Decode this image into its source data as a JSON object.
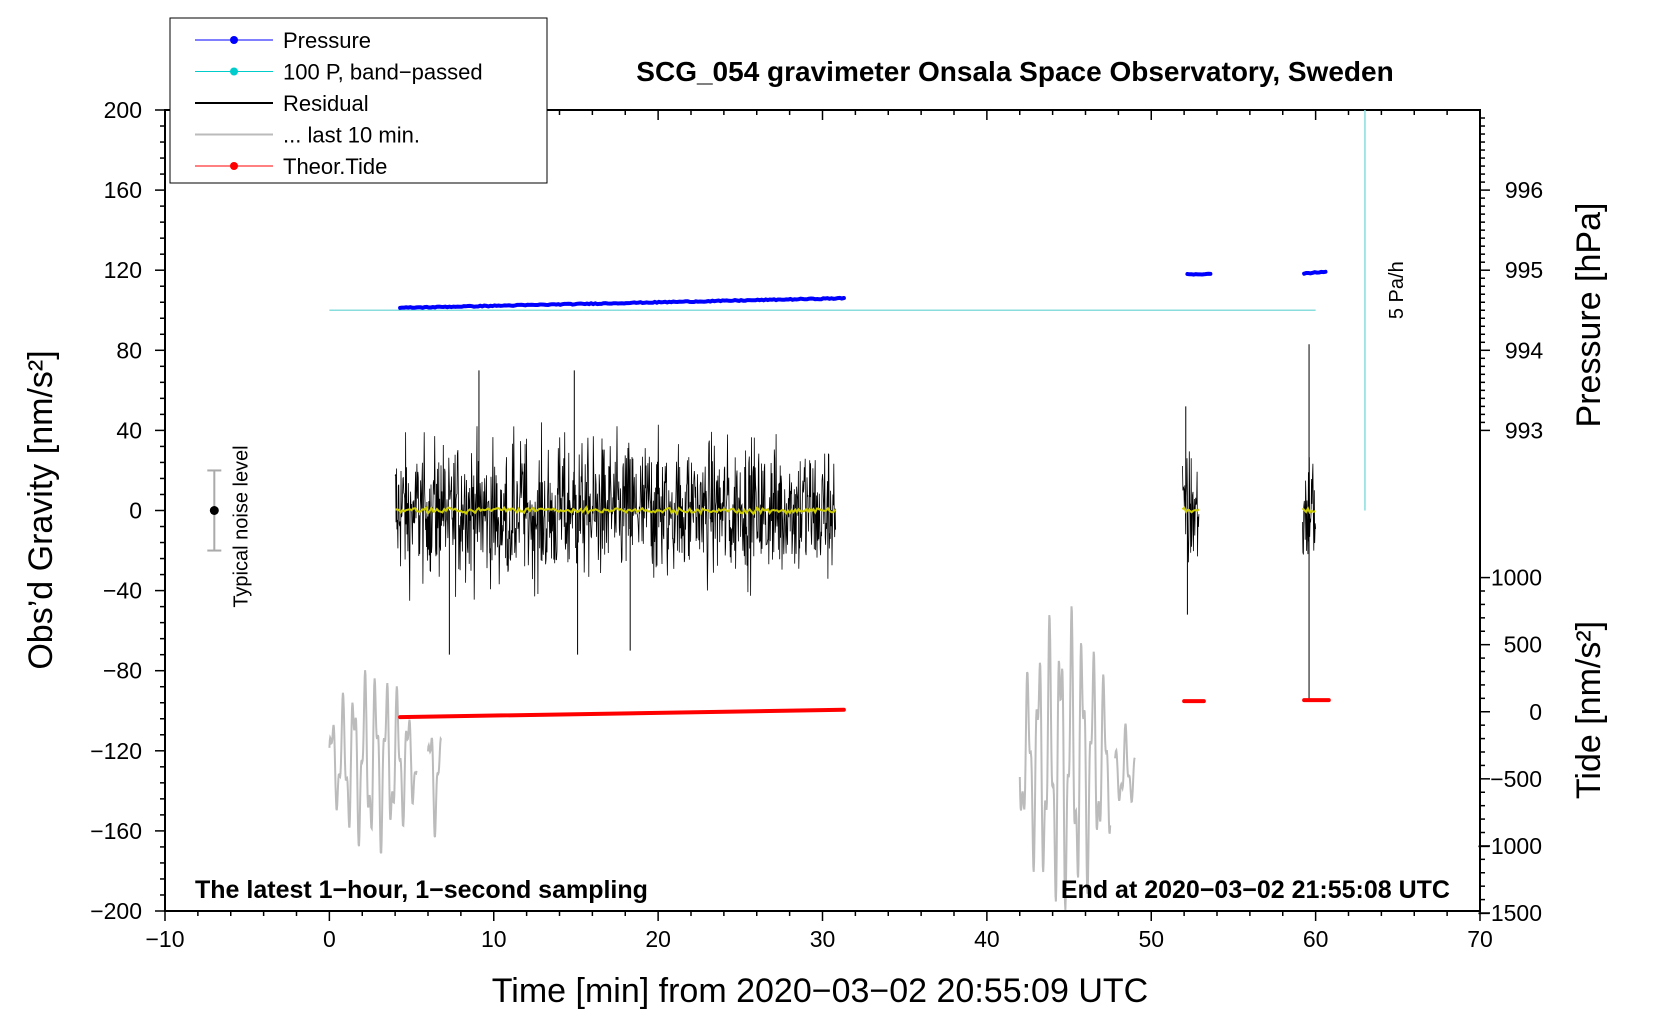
{
  "chart_data": {
    "type": "line",
    "title": "SCG_054 gravimeter Onsala Space Observatory, Sweden",
    "xlabel": "Time [min] from 2020−03−02 20:55:09 UTC",
    "ylabel_left": "Obs’d Gravity [nm/s²]",
    "ylabel_right_top": "Pressure [hPa]",
    "ylabel_right_bottom": "Tide [nm/s²]",
    "xlim": [
      -10,
      70
    ],
    "ylim_left": [
      -200,
      200
    ],
    "x_ticks": [
      {
        "v": -10,
        "label": "−10"
      },
      {
        "v": 0,
        "label": "0"
      },
      {
        "v": 10,
        "label": "10"
      },
      {
        "v": 20,
        "label": "20"
      },
      {
        "v": 30,
        "label": "30"
      },
      {
        "v": 40,
        "label": "40"
      },
      {
        "v": 50,
        "label": "50"
      },
      {
        "v": 60,
        "label": "60"
      },
      {
        "v": 70,
        "label": "70"
      }
    ],
    "y_ticks_left": [
      {
        "v": 200,
        "label": "200"
      },
      {
        "v": 160,
        "label": "160"
      },
      {
        "v": 120,
        "label": "120"
      },
      {
        "v": 80,
        "label": "80"
      },
      {
        "v": 40,
        "label": "40"
      },
      {
        "v": 0,
        "label": "0"
      },
      {
        "v": -40,
        "label": "−40"
      },
      {
        "v": -80,
        "label": "−80"
      },
      {
        "v": -120,
        "label": "−120"
      },
      {
        "v": -160,
        "label": "−160"
      },
      {
        "v": -200,
        "label": "−200"
      }
    ],
    "pressure_axis": {
      "ticks": [
        {
          "v": 996,
          "label": "996"
        },
        {
          "v": 995,
          "label": "995"
        },
        {
          "v": 994,
          "label": "994"
        },
        {
          "v": 993,
          "label": "993"
        }
      ],
      "left_equiv": {
        "a": 996,
        "b": 995,
        "ya": 160,
        "yb": 120
      }
    },
    "tide_axis": {
      "ticks": [
        {
          "v": 1000,
          "label": "1000"
        },
        {
          "v": 500,
          "label": "500"
        },
        {
          "v": 0,
          "label": "0"
        },
        {
          "v": -500,
          "label": "−500"
        },
        {
          "v": -1000,
          "label": "−1000"
        },
        {
          "v": -1500,
          "label": "−1500"
        }
      ],
      "left_equiv": {
        "a": 0,
        "b": 1000,
        "ya": -100.5,
        "yb": -33.5
      }
    },
    "legend": [
      {
        "label": "Pressure",
        "color": "#0000ff",
        "marker": true
      },
      {
        "label": "100 P, band−passed",
        "color": "#00cccc",
        "marker": true
      },
      {
        "label": "Residual",
        "color": "#000000",
        "marker": false
      },
      {
        "label": "... last 10 min.",
        "color": "#bbbbbb",
        "marker": false
      },
      {
        "label": "Theor.Tide",
        "color": "#ff0000",
        "marker": true
      }
    ],
    "pressure_segments": [
      {
        "x": [
          4.3,
          31.3
        ],
        "hpa": [
          994.53,
          994.65
        ]
      },
      {
        "x": [
          52.2,
          53.6
        ],
        "hpa": [
          994.95,
          994.95
        ]
      },
      {
        "x": [
          59.3,
          60.6
        ],
        "hpa": [
          994.96,
          994.98
        ]
      }
    ],
    "bandpassed_pressure": {
      "x": [
        0,
        60
      ],
      "y": 100,
      "color": "#88dddd"
    },
    "residual_segments": [
      {
        "x": [
          4.0,
          30.8
        ],
        "amp": 38,
        "spikes": [
          {
            "x": 7.3,
            "y": -72
          },
          {
            "x": 9.1,
            "y": 70
          },
          {
            "x": 14.9,
            "y": 70
          },
          {
            "x": 15.1,
            "y": -72
          },
          {
            "x": 18.3,
            "y": -70
          }
        ]
      },
      {
        "x": [
          51.9,
          52.9
        ],
        "amp": 35,
        "spikes": [
          {
            "x": 52.1,
            "y": 52
          },
          {
            "x": 52.2,
            "y": -52
          }
        ]
      },
      {
        "x": [
          59.2,
          60.0
        ],
        "amp": 35,
        "spikes": [
          {
            "x": 59.6,
            "y": 83
          },
          {
            "x": 59.6,
            "y": -95
          }
        ]
      }
    ],
    "residual_mean_color": "#cccc00",
    "last10_segments": [
      {
        "x": [
          0.0,
          5.3
        ],
        "amp": 30,
        "center": -125
      },
      {
        "x": [
          6.0,
          6.8
        ],
        "amp": 22,
        "center": -130
      },
      {
        "x": [
          42.0,
          47.5
        ],
        "amp": 50,
        "center": -125
      },
      {
        "x": [
          47.8,
          49.0
        ],
        "amp": 15,
        "center": -130
      }
    ],
    "tide_segments": [
      {
        "x": [
          4.3,
          31.3
        ],
        "tide": [
          -40,
          15
        ]
      },
      {
        "x": [
          52.0,
          53.2
        ],
        "tide": [
          79,
          79
        ]
      },
      {
        "x": [
          59.3,
          60.8
        ],
        "tide": [
          87,
          87
        ]
      }
    ],
    "scale_bar": {
      "x": 63,
      "y_from": 200,
      "y_to": 0,
      "label": "5 Pa/h"
    },
    "noise_level": {
      "x": -7,
      "y": 0,
      "err": 20,
      "label": "Typical noise level"
    },
    "notes": {
      "left": "The latest 1−hour, 1−second sampling",
      "right": "End at 2020−03−02 21:55:08 UTC"
    }
  }
}
